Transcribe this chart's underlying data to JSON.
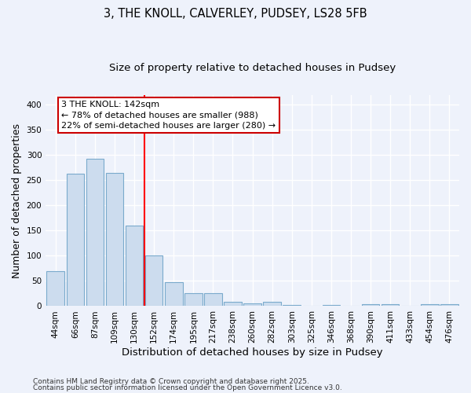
{
  "title1": "3, THE KNOLL, CALVERLEY, PUDSEY, LS28 5FB",
  "title2": "Size of property relative to detached houses in Pudsey",
  "xlabel": "Distribution of detached houses by size in Pudsey",
  "ylabel": "Number of detached properties",
  "categories": [
    "44sqm",
    "66sqm",
    "87sqm",
    "109sqm",
    "130sqm",
    "152sqm",
    "174sqm",
    "195sqm",
    "217sqm",
    "238sqm",
    "260sqm",
    "282sqm",
    "303sqm",
    "325sqm",
    "346sqm",
    "368sqm",
    "390sqm",
    "411sqm",
    "433sqm",
    "454sqm",
    "476sqm"
  ],
  "values": [
    70,
    263,
    293,
    264,
    160,
    100,
    47,
    26,
    26,
    9,
    5,
    8,
    2,
    0,
    3,
    0,
    4,
    4,
    0,
    4,
    4
  ],
  "bar_color": "#ccdcee",
  "bar_edge_color": "#7aaacc",
  "annotation_line1": "3 THE KNOLL: 142sqm",
  "annotation_line2": "← 78% of detached houses are smaller (988)",
  "annotation_line3": "22% of semi-detached houses are larger (280) →",
  "annotation_box_color": "#cc0000",
  "red_line_index": 5,
  "ylim": [
    0,
    420
  ],
  "yticks": [
    0,
    50,
    100,
    150,
    200,
    250,
    300,
    350,
    400
  ],
  "background_color": "#eef2fb",
  "grid_color": "#ffffff",
  "footer1": "Contains HM Land Registry data © Crown copyright and database right 2025.",
  "footer2": "Contains public sector information licensed under the Open Government Licence v3.0.",
  "title_fontsize": 10.5,
  "subtitle_fontsize": 9.5,
  "axis_label_fontsize": 9,
  "tick_fontsize": 7.5,
  "annotation_fontsize": 8,
  "footer_fontsize": 6.5
}
